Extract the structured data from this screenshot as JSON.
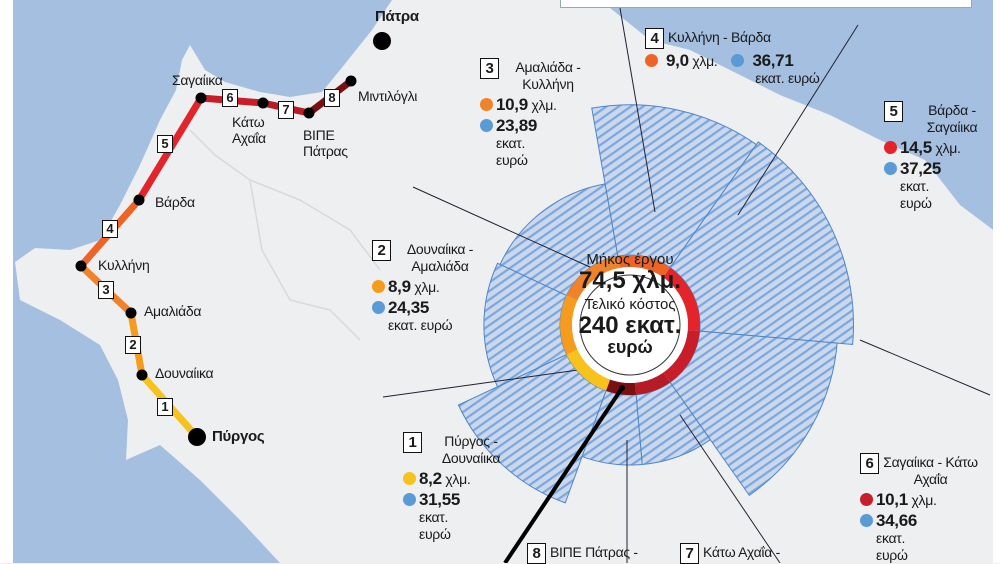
{
  "map": {
    "cities": [
      {
        "name": "Πάτρα",
        "major": true
      },
      {
        "name": "Μιντιλόγλι",
        "major": false
      },
      {
        "name": "ΒΙΠΕ Πάτρας",
        "major": false
      },
      {
        "name": "Κάτω Αχαΐα",
        "major": false
      },
      {
        "name": "Σαγαίικα",
        "major": false
      },
      {
        "name": "Βάρδα",
        "major": false
      },
      {
        "name": "Κυλλήνη",
        "major": false
      },
      {
        "name": "Αμαλιάδα",
        "major": false
      },
      {
        "name": "Δουναίικα",
        "major": false
      },
      {
        "name": "Πύργος",
        "major": true
      }
    ],
    "sea_color": "#a4bfe0",
    "land_color": "#eeeff1"
  },
  "center": {
    "length_label": "Μήκος έργου",
    "length_value": "74,5 χλμ.",
    "cost_label": "Τελικό κόστος",
    "cost_value": "240 εκατ.",
    "cost_unit": "ευρώ"
  },
  "units": {
    "km": "χλμ.",
    "cost": "εκατ. ευρώ"
  },
  "chart_data": {
    "type": "polar-area",
    "total_length_km": 74.5,
    "total_cost_million_eur": 240,
    "ring_metric": "length_km",
    "sector_metric": "cost_million_eur",
    "segments": [
      {
        "n": "1",
        "title": "Πύργος - Δουναίικα",
        "length_km": 8.2,
        "length_text": "8,2",
        "cost_million_eur": 31.55,
        "cost_text": "31,55",
        "color": "#f7c21b"
      },
      {
        "n": "2",
        "title": "Δουναίικα - Αμαλιάδα",
        "length_km": 8.9,
        "length_text": "8,9",
        "cost_million_eur": 24.35,
        "cost_text": "24,35",
        "color": "#f59b1e"
      },
      {
        "n": "3",
        "title": "Αμαλιάδα - Κυλλήνη",
        "length_km": 10.9,
        "length_text": "10,9",
        "cost_million_eur": 23.89,
        "cost_text": "23,89",
        "color": "#f0832a"
      },
      {
        "n": "4",
        "title": "Κυλλήνη - Βάρδα",
        "length_km": 9.0,
        "length_text": "9,0",
        "cost_million_eur": 36.71,
        "cost_text": "36,71",
        "color": "#ee6427"
      },
      {
        "n": "5",
        "title": "Βάρδα - Σαγαίικα",
        "length_km": 14.5,
        "length_text": "14,5",
        "cost_million_eur": 37.25,
        "cost_text": "37,25",
        "color": "#e3242b"
      },
      {
        "n": "6",
        "title": "Σαγαίικα - Κάτω Αχαΐα",
        "length_km": 10.1,
        "length_text": "10,1",
        "cost_million_eur": 34.66,
        "cost_text": "34,66",
        "color": "#c81e2a"
      },
      {
        "n": "7",
        "title": "Κάτω Αχαΐα -",
        "color": "#b51c26"
      },
      {
        "n": "8",
        "title": "ΒΙΠΕ Πάτρας -",
        "color": "#7a1013"
      }
    ],
    "cost_dot_color": "#5b9bd5",
    "hatch_color": "#7ea6d8"
  }
}
